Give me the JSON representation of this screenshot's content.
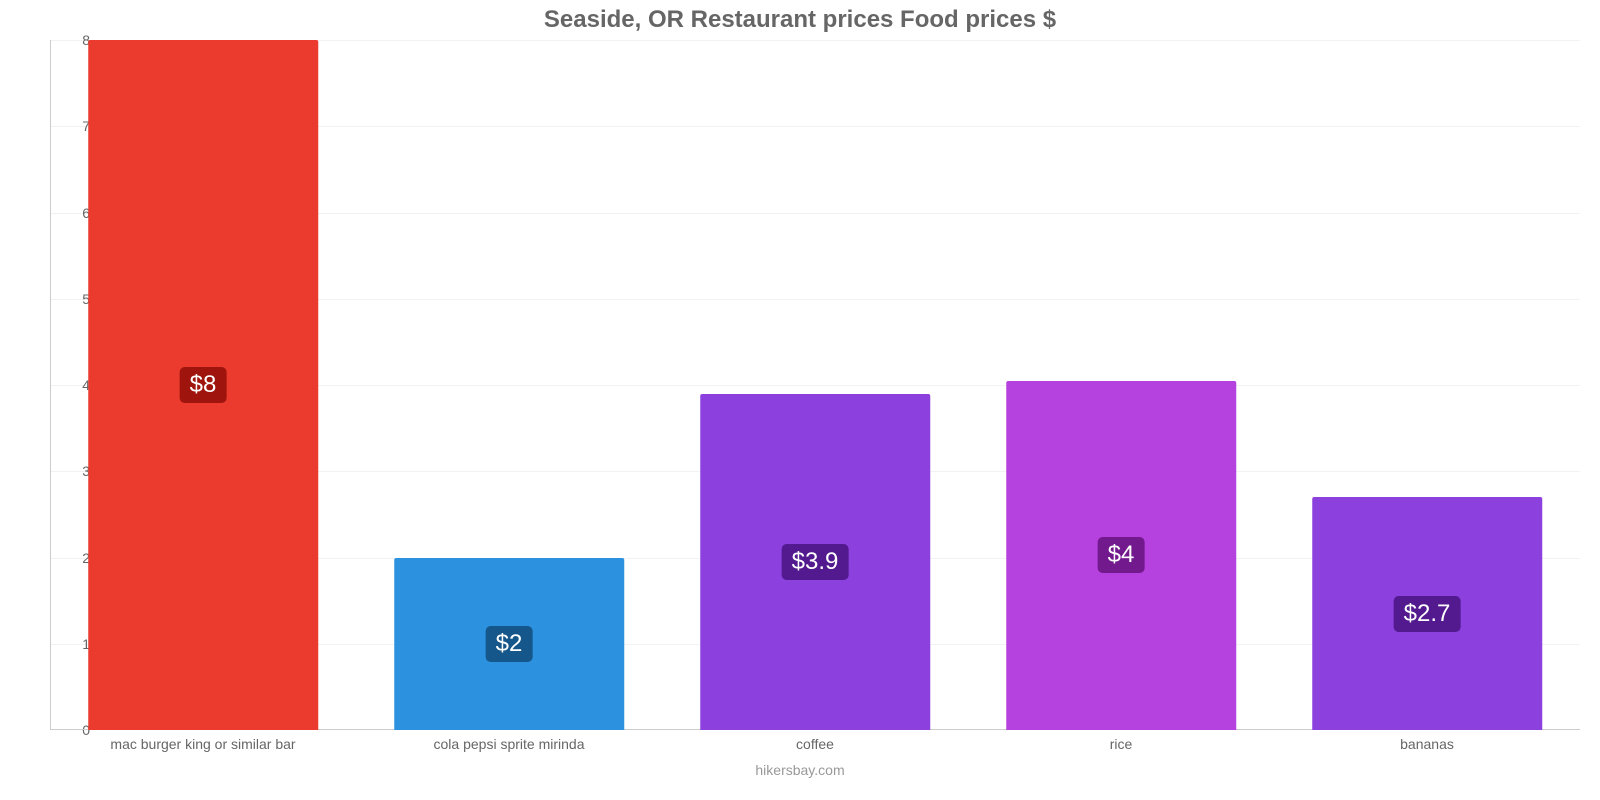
{
  "chart": {
    "type": "bar",
    "title": "Seaside, OR Restaurant prices Food prices $",
    "title_color": "#666666",
    "title_fontsize": 24,
    "subtitle": "hikersbay.com",
    "subtitle_color": "#999999",
    "background_color": "#ffffff",
    "grid_color": "#f2f2f2",
    "axis_color": "#cccccc",
    "tick_label_color": "#666666",
    "tick_fontsize": 14,
    "y": {
      "min": 0,
      "max": 8,
      "step": 1
    },
    "bar_width_pct": 75,
    "value_label_fontsize": 24,
    "items": [
      {
        "category": "mac burger king or similar bar",
        "value": 8,
        "label": "$8",
        "color": "#EB3B2E",
        "badge_bg": "#9F150D"
      },
      {
        "category": "cola pepsi sprite mirinda",
        "value": 2,
        "label": "$2",
        "color": "#2C92DF",
        "badge_bg": "#15578B"
      },
      {
        "category": "coffee",
        "value": 3.9,
        "label": "$3.9",
        "color": "#8C41DE",
        "badge_bg": "#53198E"
      },
      {
        "category": "rice",
        "value": 4.05,
        "label": "$4",
        "color": "#B541DE",
        "badge_bg": "#73198E"
      },
      {
        "category": "bananas",
        "value": 2.7,
        "label": "$2.7",
        "color": "#8C41DE",
        "badge_bg": "#53198E"
      }
    ]
  }
}
